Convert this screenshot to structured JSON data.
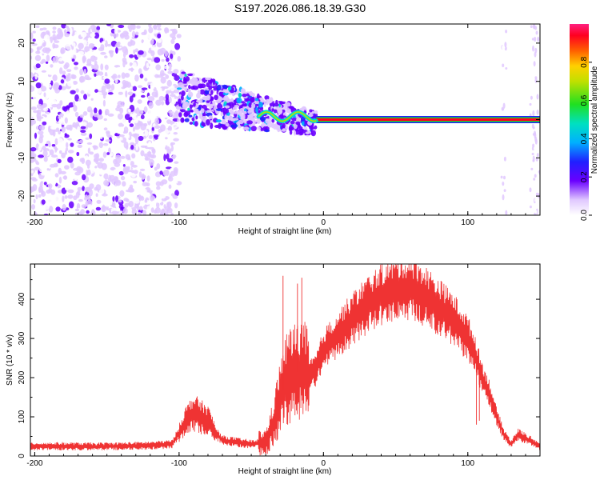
{
  "title": "S197.2026.086.18.39.G30",
  "chart_data": [
    {
      "type": "heatmap",
      "name": "spectrogram",
      "xlabel": "Height of straight line (km)",
      "ylabel": "Frequency (Hz)",
      "xlim": [
        -203,
        150
      ],
      "ylim": [
        -25,
        25
      ],
      "xticks": [
        "-200",
        "-100",
        "0",
        "100"
      ],
      "yticks": [
        "-20",
        "-10",
        "0",
        "10",
        "20"
      ],
      "colorbar": {
        "label": "Normalized spectral amplitude",
        "range": [
          0,
          1
        ],
        "ticks": [
          "0.0",
          "0.2",
          "0.4",
          "0.6",
          "0.8"
        ]
      },
      "features": [
        {
          "name": "carrier-line",
          "x_from": -5,
          "x_to": 150,
          "frequency": 0,
          "amplitude": 0.95
        },
        {
          "name": "noise-scatter",
          "x_from": -203,
          "x_to": -100,
          "frequency_range": [
            -25,
            25
          ],
          "amplitude": 0.15
        },
        {
          "name": "transition-band",
          "x_from": -100,
          "x_to": -5,
          "frequency_range": [
            -12,
            10
          ],
          "amplitude": 0.3
        }
      ]
    },
    {
      "type": "line",
      "name": "snr",
      "xlabel": "Height of straight line (km)",
      "ylabel": "SNR (10 * v/v)",
      "xlim": [
        -203,
        150
      ],
      "ylim": [
        0,
        490
      ],
      "xticks": [
        "-200",
        "-100",
        "0",
        "100"
      ],
      "yticks": [
        "0",
        "100",
        "200",
        "300",
        "400"
      ],
      "color": "#ef3333",
      "series": [
        {
          "name": "SNR",
          "x": [
            -203,
            -180,
            -160,
            -140,
            -120,
            -105,
            -100,
            -95,
            -90,
            -85,
            -80,
            -75,
            -70,
            -60,
            -50,
            -40,
            -35,
            -30,
            -25,
            -20,
            -15,
            -10,
            -5,
            0,
            10,
            20,
            30,
            40,
            50,
            60,
            70,
            80,
            90,
            100,
            105,
            110,
            115,
            120,
            125,
            130,
            135,
            140,
            150
          ],
          "y": [
            25,
            25,
            24,
            25,
            27,
            30,
            60,
            90,
            110,
            100,
            90,
            60,
            40,
            35,
            30,
            35,
            80,
            150,
            200,
            210,
            220,
            200,
            220,
            270,
            310,
            350,
            385,
            410,
            425,
            430,
            410,
            380,
            350,
            300,
            260,
            200,
            160,
            100,
            55,
            30,
            55,
            45,
            25
          ]
        }
      ]
    }
  ]
}
